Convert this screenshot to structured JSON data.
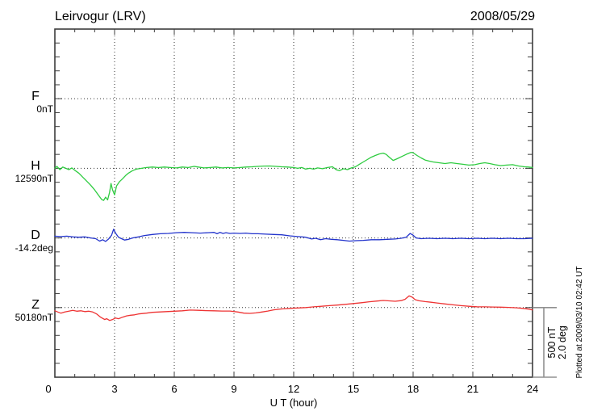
{
  "header": {
    "station_title": "Leirvogur (LRV)",
    "date": "2008/05/29"
  },
  "x_axis": {
    "title": "U T (hour)",
    "ticks": [
      0,
      3,
      6,
      9,
      12,
      15,
      18,
      21,
      24
    ],
    "minor_step_hours": 1,
    "range_hours": [
      0,
      24
    ]
  },
  "scale_bar": {
    "label_nt": "500 nT",
    "label_deg": "2.0 deg"
  },
  "footer_note": "Plotted at 2009/03/10 02:42 UT",
  "colors": {
    "F": "#FFAA00",
    "H": "#2ECC40",
    "D": "#2233CC",
    "Z": "#EE3333",
    "axis": "#3c3c3c",
    "grid": "#333333",
    "scale_bar": "#909090"
  },
  "chart_data": {
    "type": "line",
    "title": "Leirvogur (LRV) magnetogram",
    "date": "2008/05/29",
    "xlabel": "U T (hour)",
    "xlim": [
      0,
      24
    ],
    "grid": "dotted vertical lines every 3 h; dotted horizontal line at each channel baseline",
    "legend_position": "left margin channel labels",
    "scale": {
      "nt_per_division": 500,
      "deg_per_division": 2.0
    },
    "series": [
      {
        "label": "F",
        "baseline_label": "0nT",
        "unit": "nT",
        "color": "#FFAA00",
        "points": []
      },
      {
        "label": "H",
        "baseline_label": "12590nT",
        "unit": "nT",
        "color": "#2ECC40",
        "points": [
          [
            0.0,
            0
          ],
          [
            0.1,
            14
          ],
          [
            0.25,
            -9
          ],
          [
            0.4,
            9
          ],
          [
            0.55,
            0
          ],
          [
            0.7,
            -9
          ],
          [
            0.85,
            3
          ],
          [
            1.0,
            -14
          ],
          [
            1.2,
            -34
          ],
          [
            1.4,
            -63
          ],
          [
            1.6,
            -92
          ],
          [
            1.8,
            -121
          ],
          [
            2.0,
            -155
          ],
          [
            2.2,
            -195
          ],
          [
            2.35,
            -224
          ],
          [
            2.45,
            -230
          ],
          [
            2.55,
            -207
          ],
          [
            2.65,
            -227
          ],
          [
            2.75,
            -172
          ],
          [
            2.82,
            -109
          ],
          [
            2.9,
            -155
          ],
          [
            3.0,
            -190
          ],
          [
            3.1,
            -126
          ],
          [
            3.25,
            -95
          ],
          [
            3.4,
            -75
          ],
          [
            3.55,
            -52
          ],
          [
            3.7,
            -34
          ],
          [
            3.9,
            -17
          ],
          [
            4.1,
            -6
          ],
          [
            4.35,
            0
          ],
          [
            4.6,
            6
          ],
          [
            4.9,
            9
          ],
          [
            5.2,
            6
          ],
          [
            5.5,
            9
          ],
          [
            5.8,
            6
          ],
          [
            6.1,
            3
          ],
          [
            6.4,
            9
          ],
          [
            6.7,
            6
          ],
          [
            7.0,
            14
          ],
          [
            7.2,
            9
          ],
          [
            7.5,
            3
          ],
          [
            7.8,
            6
          ],
          [
            8.1,
            9
          ],
          [
            8.4,
            3
          ],
          [
            8.7,
            6
          ],
          [
            9.0,
            3
          ],
          [
            9.3,
            6
          ],
          [
            9.6,
            9
          ],
          [
            9.9,
            11
          ],
          [
            10.2,
            14
          ],
          [
            10.5,
            16
          ],
          [
            10.8,
            17
          ],
          [
            11.1,
            14
          ],
          [
            11.4,
            11
          ],
          [
            11.7,
            9
          ],
          [
            12.0,
            6
          ],
          [
            12.2,
            0
          ],
          [
            12.4,
            6
          ],
          [
            12.6,
            -6
          ],
          [
            12.8,
            0
          ],
          [
            13.0,
            -6
          ],
          [
            13.2,
            3
          ],
          [
            13.45,
            -3
          ],
          [
            13.7,
            6
          ],
          [
            13.95,
            11
          ],
          [
            14.15,
            -11
          ],
          [
            14.3,
            -17
          ],
          [
            14.5,
            -3
          ],
          [
            14.7,
            -9
          ],
          [
            14.9,
            3
          ],
          [
            15.1,
            11
          ],
          [
            15.3,
            29
          ],
          [
            15.5,
            46
          ],
          [
            15.7,
            63
          ],
          [
            15.9,
            80
          ],
          [
            16.1,
            92
          ],
          [
            16.3,
            103
          ],
          [
            16.5,
            109
          ],
          [
            16.65,
            100
          ],
          [
            16.8,
            80
          ],
          [
            17.0,
            57
          ],
          [
            17.2,
            69
          ],
          [
            17.45,
            86
          ],
          [
            17.7,
            103
          ],
          [
            17.9,
            115
          ],
          [
            18.0,
            112
          ],
          [
            18.2,
            92
          ],
          [
            18.4,
            75
          ],
          [
            18.6,
            60
          ],
          [
            18.8,
            52
          ],
          [
            19.0,
            46
          ],
          [
            19.3,
            40
          ],
          [
            19.6,
            34
          ],
          [
            19.9,
            40
          ],
          [
            20.2,
            34
          ],
          [
            20.5,
            29
          ],
          [
            20.8,
            23
          ],
          [
            21.1,
            26
          ],
          [
            21.35,
            34
          ],
          [
            21.6,
            40
          ],
          [
            21.85,
            34
          ],
          [
            22.1,
            26
          ],
          [
            22.4,
            20
          ],
          [
            22.7,
            23
          ],
          [
            23.0,
            26
          ],
          [
            23.3,
            17
          ],
          [
            23.6,
            11
          ],
          [
            23.8,
            9
          ],
          [
            24.0,
            6
          ]
        ]
      },
      {
        "label": "D",
        "baseline_label": "-14.2deg",
        "unit": "deg",
        "color": "#2233CC",
        "points": [
          [
            0.0,
            0.05
          ],
          [
            0.3,
            0.04
          ],
          [
            0.6,
            0.05
          ],
          [
            0.9,
            0.03
          ],
          [
            1.2,
            0.02
          ],
          [
            1.5,
            0.03
          ],
          [
            1.8,
            0.0
          ],
          [
            2.05,
            -0.02
          ],
          [
            2.25,
            -0.09
          ],
          [
            2.4,
            -0.05
          ],
          [
            2.55,
            -0.1
          ],
          [
            2.7,
            -0.03
          ],
          [
            2.85,
            0.08
          ],
          [
            2.95,
            0.25
          ],
          [
            3.05,
            0.14
          ],
          [
            3.2,
            0.02
          ],
          [
            3.35,
            -0.02
          ],
          [
            3.5,
            -0.06
          ],
          [
            3.7,
            -0.04
          ],
          [
            3.9,
            0.0
          ],
          [
            4.2,
            0.03
          ],
          [
            4.5,
            0.07
          ],
          [
            4.9,
            0.1
          ],
          [
            5.3,
            0.12
          ],
          [
            5.7,
            0.13
          ],
          [
            6.1,
            0.15
          ],
          [
            6.5,
            0.16
          ],
          [
            6.9,
            0.15
          ],
          [
            7.3,
            0.14
          ],
          [
            7.7,
            0.15
          ],
          [
            8.0,
            0.16
          ],
          [
            8.15,
            0.12
          ],
          [
            8.3,
            0.16
          ],
          [
            8.45,
            0.13
          ],
          [
            8.6,
            0.15
          ],
          [
            8.8,
            0.13
          ],
          [
            9.0,
            0.14
          ],
          [
            9.3,
            0.13
          ],
          [
            9.6,
            0.14
          ],
          [
            9.9,
            0.12
          ],
          [
            10.2,
            0.12
          ],
          [
            10.6,
            0.11
          ],
          [
            11.0,
            0.1
          ],
          [
            11.4,
            0.09
          ],
          [
            11.8,
            0.06
          ],
          [
            12.2,
            0.04
          ],
          [
            12.6,
            0.02
          ],
          [
            12.9,
            -0.03
          ],
          [
            13.1,
            -0.01
          ],
          [
            13.35,
            -0.05
          ],
          [
            13.6,
            -0.02
          ],
          [
            13.9,
            -0.04
          ],
          [
            14.2,
            -0.05
          ],
          [
            14.5,
            -0.07
          ],
          [
            14.8,
            -0.09
          ],
          [
            15.1,
            -0.08
          ],
          [
            15.5,
            -0.07
          ],
          [
            15.9,
            -0.05
          ],
          [
            16.3,
            -0.05
          ],
          [
            16.7,
            -0.04
          ],
          [
            17.1,
            -0.03
          ],
          [
            17.4,
            -0.01
          ],
          [
            17.65,
            0.02
          ],
          [
            17.85,
            0.13
          ],
          [
            18.0,
            0.08
          ],
          [
            18.15,
            0.0
          ],
          [
            18.4,
            -0.02
          ],
          [
            18.8,
            -0.01
          ],
          [
            19.2,
            -0.02
          ],
          [
            19.6,
            -0.01
          ],
          [
            20.0,
            -0.02
          ],
          [
            20.4,
            -0.01
          ],
          [
            20.8,
            -0.02
          ],
          [
            21.2,
            -0.01
          ],
          [
            21.6,
            -0.02
          ],
          [
            22.0,
            -0.01
          ],
          [
            22.4,
            -0.02
          ],
          [
            22.8,
            -0.01
          ],
          [
            23.2,
            -0.02
          ],
          [
            23.6,
            -0.02
          ],
          [
            24.0,
            -0.01
          ]
        ]
      },
      {
        "label": "Z",
        "baseline_label": "50180nT",
        "unit": "nT",
        "color": "#EE3333",
        "points": [
          [
            0.0,
            -23
          ],
          [
            0.15,
            -32
          ],
          [
            0.3,
            -40
          ],
          [
            0.5,
            -32
          ],
          [
            0.7,
            -26
          ],
          [
            0.9,
            -20
          ],
          [
            1.1,
            -26
          ],
          [
            1.3,
            -23
          ],
          [
            1.5,
            -29
          ],
          [
            1.7,
            -26
          ],
          [
            1.9,
            -32
          ],
          [
            2.1,
            -46
          ],
          [
            2.3,
            -69
          ],
          [
            2.5,
            -86
          ],
          [
            2.6,
            -80
          ],
          [
            2.75,
            -92
          ],
          [
            2.9,
            -86
          ],
          [
            3.05,
            -75
          ],
          [
            3.2,
            -80
          ],
          [
            3.4,
            -69
          ],
          [
            3.6,
            -60
          ],
          [
            3.8,
            -55
          ],
          [
            4.0,
            -52
          ],
          [
            4.2,
            -46
          ],
          [
            4.4,
            -43
          ],
          [
            4.6,
            -40
          ],
          [
            4.9,
            -34
          ],
          [
            5.2,
            -32
          ],
          [
            5.6,
            -29
          ],
          [
            6.0,
            -26
          ],
          [
            6.4,
            -23
          ],
          [
            6.8,
            -18
          ],
          [
            7.2,
            -20
          ],
          [
            7.6,
            -22
          ],
          [
            8.0,
            -23
          ],
          [
            8.4,
            -25
          ],
          [
            8.8,
            -25
          ],
          [
            9.2,
            -32
          ],
          [
            9.5,
            -40
          ],
          [
            9.8,
            -42
          ],
          [
            10.1,
            -38
          ],
          [
            10.4,
            -32
          ],
          [
            10.7,
            -25
          ],
          [
            11.0,
            -16
          ],
          [
            11.4,
            -10
          ],
          [
            11.8,
            -6
          ],
          [
            12.2,
            -3
          ],
          [
            12.6,
            0
          ],
          [
            13.0,
            5
          ],
          [
            13.4,
            9
          ],
          [
            13.8,
            14
          ],
          [
            14.2,
            18
          ],
          [
            14.6,
            23
          ],
          [
            15.0,
            29
          ],
          [
            15.4,
            35
          ],
          [
            15.8,
            42
          ],
          [
            16.2,
            47
          ],
          [
            16.5,
            51
          ],
          [
            16.8,
            48
          ],
          [
            17.1,
            45
          ],
          [
            17.4,
            50
          ],
          [
            17.6,
            60
          ],
          [
            17.8,
            84
          ],
          [
            17.95,
            75
          ],
          [
            18.1,
            57
          ],
          [
            18.3,
            49
          ],
          [
            18.6,
            43
          ],
          [
            18.9,
            38
          ],
          [
            19.2,
            33
          ],
          [
            19.6,
            26
          ],
          [
            20.0,
            20
          ],
          [
            20.4,
            14
          ],
          [
            20.8,
            9
          ],
          [
            21.2,
            6
          ],
          [
            21.6,
            5
          ],
          [
            22.0,
            4
          ],
          [
            22.4,
            3
          ],
          [
            22.8,
            1
          ],
          [
            23.2,
            -2
          ],
          [
            23.5,
            -6
          ],
          [
            23.8,
            -11
          ],
          [
            24.0,
            -17
          ]
        ]
      }
    ]
  }
}
